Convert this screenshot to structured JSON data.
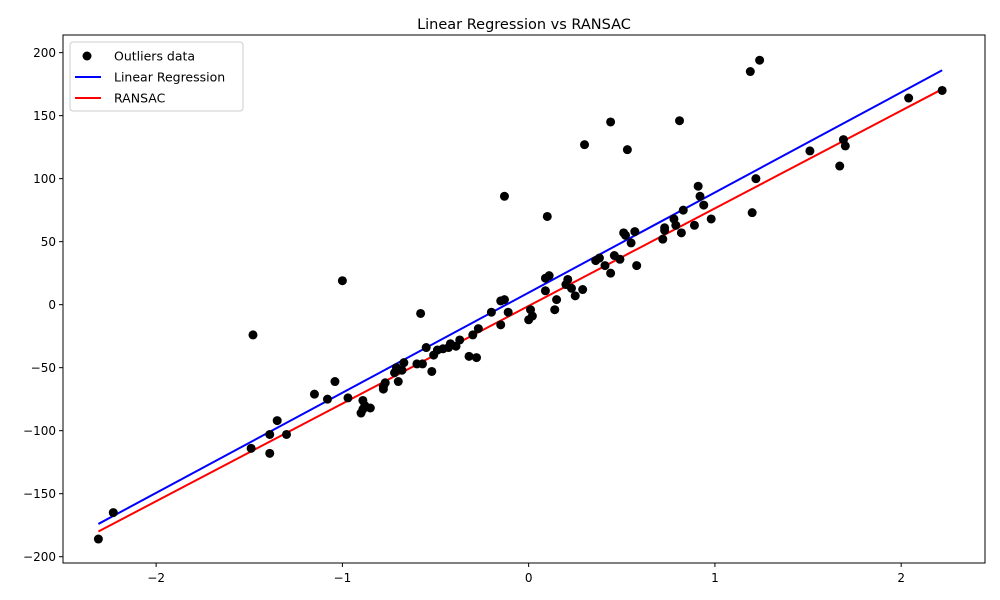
{
  "chart_data": {
    "type": "scatter",
    "title": "Linear Regression vs RANSAC",
    "xlabel": "",
    "ylabel": "",
    "xlim": [
      -2.5,
      2.45
    ],
    "ylim": [
      -205,
      214
    ],
    "xticks": [
      -2,
      -1,
      0,
      1,
      2
    ],
    "yticks": [
      -200,
      -150,
      -100,
      -50,
      0,
      50,
      100,
      150,
      200
    ],
    "grid": false,
    "legend_position": "top-left",
    "scatter": {
      "name": "Outliers data",
      "color": "#000000",
      "points": [
        [
          -2.31,
          -186
        ],
        [
          -2.23,
          -165
        ],
        [
          -1.49,
          -114
        ],
        [
          -1.48,
          -24
        ],
        [
          -1.39,
          -103
        ],
        [
          -1.39,
          -118
        ],
        [
          -1.35,
          -92
        ],
        [
          -1.3,
          -103
        ],
        [
          -1.15,
          -71
        ],
        [
          -1.08,
          -75
        ],
        [
          -1.04,
          -61
        ],
        [
          -1.0,
          19
        ],
        [
          -0.97,
          -74
        ],
        [
          -0.9,
          -86
        ],
        [
          -0.89,
          -83
        ],
        [
          -0.89,
          -76
        ],
        [
          -0.88,
          -80
        ],
        [
          -0.85,
          -82
        ],
        [
          -0.78,
          -65
        ],
        [
          -0.78,
          -67
        ],
        [
          -0.77,
          -62
        ],
        [
          -0.72,
          -54
        ],
        [
          -0.71,
          -50
        ],
        [
          -0.7,
          -61
        ],
        [
          -0.68,
          -52
        ],
        [
          -0.67,
          -46
        ],
        [
          -0.6,
          -47
        ],
        [
          -0.58,
          -7
        ],
        [
          -0.57,
          -47
        ],
        [
          -0.55,
          -34
        ],
        [
          -0.52,
          -53
        ],
        [
          -0.51,
          -40
        ],
        [
          -0.49,
          -36
        ],
        [
          -0.46,
          -35
        ],
        [
          -0.43,
          -34
        ],
        [
          -0.42,
          -31
        ],
        [
          -0.39,
          -33
        ],
        [
          -0.37,
          -28
        ],
        [
          -0.32,
          -41
        ],
        [
          -0.3,
          -24
        ],
        [
          -0.28,
          -42
        ],
        [
          -0.27,
          -19
        ],
        [
          -0.2,
          -6
        ],
        [
          -0.15,
          -16
        ],
        [
          -0.15,
          3
        ],
        [
          -0.13,
          86
        ],
        [
          -0.13,
          4
        ],
        [
          -0.11,
          -6
        ],
        [
          0.0,
          -12
        ],
        [
          0.01,
          -4
        ],
        [
          0.02,
          -9
        ],
        [
          0.09,
          11
        ],
        [
          0.09,
          21
        ],
        [
          0.1,
          70
        ],
        [
          0.11,
          23
        ],
        [
          0.14,
          -4
        ],
        [
          0.15,
          4
        ],
        [
          0.2,
          16
        ],
        [
          0.21,
          20
        ],
        [
          0.23,
          13
        ],
        [
          0.25,
          7
        ],
        [
          0.29,
          12
        ],
        [
          0.3,
          127
        ],
        [
          0.36,
          35
        ],
        [
          0.38,
          37
        ],
        [
          0.41,
          31
        ],
        [
          0.44,
          25
        ],
        [
          0.44,
          145
        ],
        [
          0.46,
          39
        ],
        [
          0.49,
          36
        ],
        [
          0.51,
          57
        ],
        [
          0.52,
          55
        ],
        [
          0.53,
          123
        ],
        [
          0.55,
          49
        ],
        [
          0.57,
          58
        ],
        [
          0.58,
          31
        ],
        [
          0.72,
          52
        ],
        [
          0.73,
          61
        ],
        [
          0.73,
          59
        ],
        [
          0.78,
          68
        ],
        [
          0.79,
          63
        ],
        [
          0.81,
          146
        ],
        [
          0.82,
          57
        ],
        [
          0.83,
          75
        ],
        [
          0.89,
          63
        ],
        [
          0.91,
          94
        ],
        [
          0.92,
          86
        ],
        [
          0.94,
          79
        ],
        [
          0.98,
          68
        ],
        [
          1.19,
          185
        ],
        [
          1.2,
          73
        ],
        [
          1.22,
          100
        ],
        [
          1.24,
          194
        ],
        [
          1.51,
          122
        ],
        [
          1.67,
          110
        ],
        [
          1.69,
          131
        ],
        [
          1.7,
          126
        ],
        [
          2.04,
          164
        ],
        [
          2.22,
          170
        ]
      ]
    },
    "series": [
      {
        "name": "Linear Regression",
        "color": "#0000ff",
        "x": [
          -2.31,
          2.22
        ],
        "y": [
          -174,
          186
        ]
      },
      {
        "name": "RANSAC",
        "color": "#ff0000",
        "x": [
          -2.31,
          2.22
        ],
        "y": [
          -180,
          171
        ]
      }
    ]
  }
}
